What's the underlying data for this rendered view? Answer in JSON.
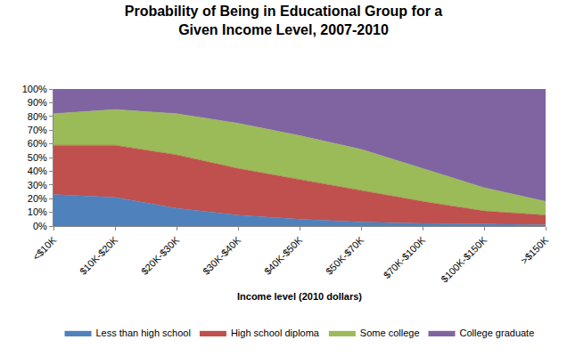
{
  "chart_data": {
    "type": "area",
    "title": "Probability of Being in Educational Group for a Given Income Level, 2007-2010",
    "x_label": "Income level (2010 dollars)",
    "categories": [
      "<$10K",
      "$10K-$20K",
      "$20K-$30K",
      "$30K-$40K",
      "$40K-$50K",
      "$50K-$70K",
      "$70K-$100K",
      "$100K-$150K",
      ">$150K"
    ],
    "series": [
      {
        "name": "Less than high school",
        "color": "#4f81bd",
        "values": [
          23,
          21,
          13,
          8,
          5,
          3,
          2,
          1.5,
          1
        ]
      },
      {
        "name": "High school diploma",
        "color": "#c0504d",
        "values": [
          36,
          38,
          39,
          34,
          29,
          23,
          16,
          9.5,
          7
        ]
      },
      {
        "name": "Some college",
        "color": "#9bbb59",
        "values": [
          23,
          26,
          30,
          33,
          32,
          30,
          24,
          17,
          10
        ]
      },
      {
        "name": "College graduate",
        "color": "#8064a2",
        "values": [
          18,
          15,
          18,
          25,
          34,
          44,
          58,
          72,
          82
        ]
      }
    ],
    "stacked": true,
    "ylim": [
      0,
      100
    ],
    "yticks": [
      {
        "value": 0,
        "label": "0%"
      },
      {
        "value": 10,
        "label": "10%"
      },
      {
        "value": 20,
        "label": "20%"
      },
      {
        "value": 30,
        "label": "30%"
      },
      {
        "value": 40,
        "label": "40%"
      },
      {
        "value": 50,
        "label": "50%"
      },
      {
        "value": 60,
        "label": "60%"
      },
      {
        "value": 70,
        "label": "70%"
      },
      {
        "value": 80,
        "label": "80%"
      },
      {
        "value": 90,
        "label": "90%"
      },
      {
        "value": 100,
        "label": "100%"
      }
    ],
    "grid": false,
    "legend": "bottom"
  }
}
